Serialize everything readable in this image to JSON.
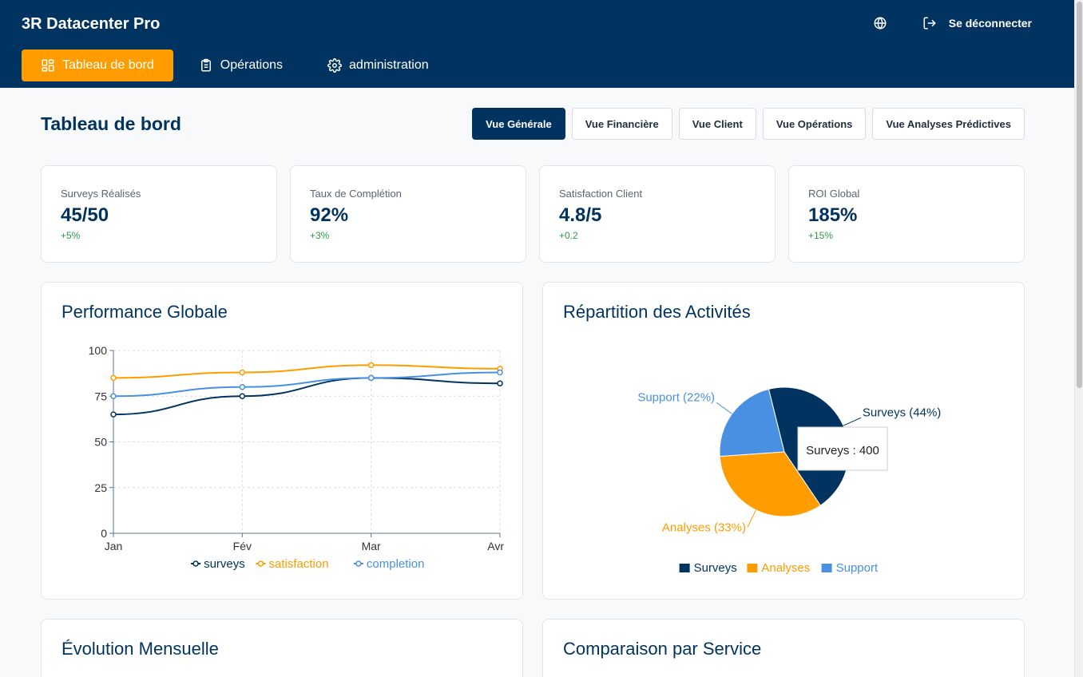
{
  "header": {
    "brand": "3R Datacenter Pro",
    "logout_label": "Se déconnecter",
    "nav": [
      {
        "label": "Tableau de bord",
        "icon": "dashboard-icon"
      },
      {
        "label": "Opérations",
        "icon": "clipboard-icon"
      },
      {
        "label": "administration",
        "icon": "gear-icon"
      }
    ]
  },
  "main": {
    "title": "Tableau de bord",
    "view_tabs": [
      "Vue Générale",
      "Vue Financière",
      "Vue Client",
      "Vue Opérations",
      "Vue Analyses Prédictives"
    ],
    "kpis": [
      {
        "label": "Surveys Réalisés",
        "value": "45/50",
        "delta": "+5%"
      },
      {
        "label": "Taux de Complétion",
        "value": "92%",
        "delta": "+3%"
      },
      {
        "label": "Satisfaction Client",
        "value": "4.8/5",
        "delta": "+0.2"
      },
      {
        "label": "ROI Global",
        "value": "185%",
        "delta": "+15%"
      }
    ],
    "cards": {
      "performance_title": "Performance Globale",
      "repartition_title": "Répartition des Activités",
      "evolution_title": "Évolution Mensuelle",
      "comparaison_title": "Comparaison par Service"
    }
  },
  "colors": {
    "primary": "#00335f",
    "accent": "#ff9c00",
    "light_blue": "#4a90e2",
    "positive": "#2f9a48"
  },
  "chart_data": [
    {
      "type": "line",
      "x": [
        "Jan",
        "Fév",
        "Mar",
        "Avr"
      ],
      "ylim": [
        0,
        100
      ],
      "yticks": [
        0,
        25,
        50,
        75,
        100
      ],
      "grid": true,
      "legend_position": "bottom",
      "series": [
        {
          "name": "surveys",
          "values": [
            65,
            75,
            85,
            82
          ],
          "color": "#00335f"
        },
        {
          "name": "satisfaction",
          "values": [
            85,
            88,
            92,
            90
          ],
          "color": "#ff9c00"
        },
        {
          "name": "completion",
          "values": [
            75,
            80,
            85,
            88
          ],
          "color": "#4a90e2"
        }
      ]
    },
    {
      "type": "pie",
      "legend_position": "bottom",
      "slices": [
        {
          "name": "Surveys",
          "value": 400,
          "label": "Surveys (44%)",
          "color": "#00335f"
        },
        {
          "name": "Analyses",
          "value": 300,
          "label": "Analyses (33%)",
          "color": "#ff9c00"
        },
        {
          "name": "Support",
          "value": 200,
          "label": "Support (22%)",
          "color": "#4a90e2"
        }
      ],
      "tooltip": "Surveys : 400"
    }
  ]
}
